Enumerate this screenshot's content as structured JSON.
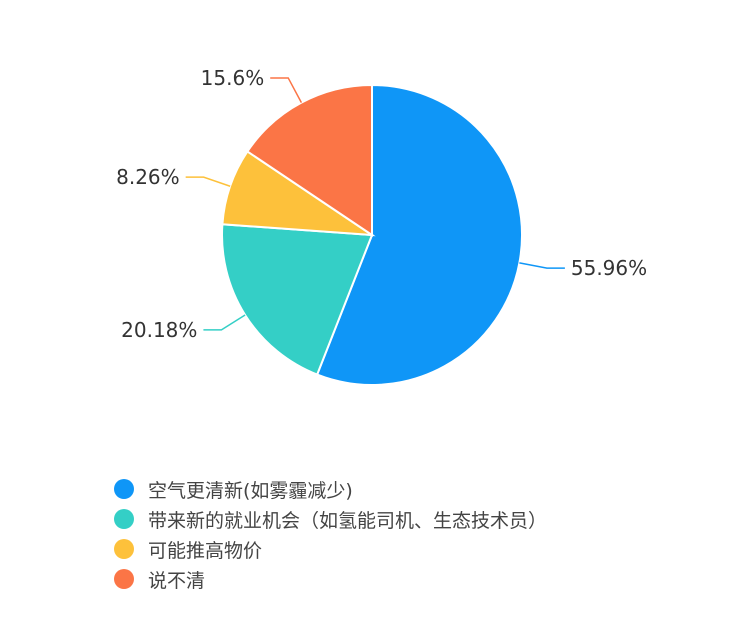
{
  "chart_data": {
    "type": "pie",
    "start": "top",
    "direction": "clockwise",
    "slices": [
      {
        "label": "空气更清新(如雾霾减少)",
        "value": 55.96,
        "data_label": "55.96%",
        "color": "#0f96f7"
      },
      {
        "label": "带来新的就业机会（如氢能司机、生态技术员）",
        "value": 20.18,
        "data_label": "20.18%",
        "color": "#34cfc6"
      },
      {
        "label": "可能推高物价",
        "value": 8.26,
        "data_label": "8.26%",
        "color": "#fdc13b"
      },
      {
        "label": "说不清",
        "value": 15.6,
        "data_label": "15.6%",
        "color": "#fb7546"
      }
    ],
    "legend_position": "bottom-left"
  }
}
